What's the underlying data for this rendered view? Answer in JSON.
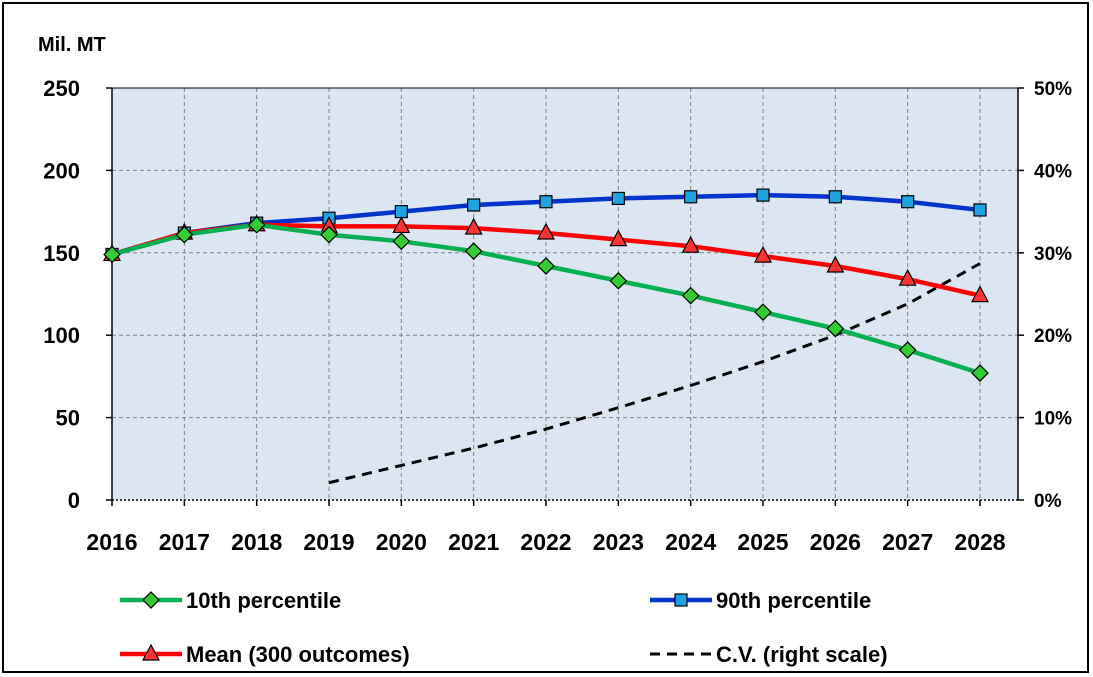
{
  "chart_data": {
    "type": "line",
    "title": "",
    "ylabel": "Mil. MT",
    "ylim": [
      0,
      250
    ],
    "yticks": [
      "0",
      "50",
      "100",
      "150",
      "200",
      "250"
    ],
    "y2lim": [
      0,
      0.5
    ],
    "y2ticks": [
      "0%",
      "10%",
      "20%",
      "30%",
      "40%",
      "50%"
    ],
    "categories": [
      "2016",
      "2017",
      "2018",
      "2019",
      "2020",
      "2021",
      "2022",
      "2023",
      "2024",
      "2025",
      "2026",
      "2027",
      "2028"
    ],
    "grid": true,
    "legend_position": "bottom",
    "colors": {
      "plot_bg": "#dce6f2",
      "p10": "#00b050",
      "p90": "#0033cc",
      "mean": "#ff0000",
      "cv": "#000000"
    },
    "series": [
      {
        "name": "10th percentile",
        "key": "p10",
        "axis": "left",
        "marker": "diamond",
        "marker_fill": "#33cc33",
        "values": [
          149,
          161,
          167,
          161,
          157,
          151,
          142,
          133,
          124,
          114,
          104,
          91,
          77
        ]
      },
      {
        "name": "90th percentile",
        "key": "p90",
        "axis": "left",
        "marker": "square",
        "marker_fill": "#1fa3e0",
        "values": [
          149,
          162,
          168,
          171,
          175,
          179,
          181,
          183,
          184,
          185,
          184,
          181,
          176
        ]
      },
      {
        "name": "Mean (300 outcomes)",
        "key": "mean",
        "axis": "left",
        "marker": "triangle",
        "marker_fill": "#ff3333",
        "values": [
          149,
          162,
          167,
          166,
          166,
          165,
          162,
          158,
          154,
          148,
          142,
          134,
          124
        ]
      },
      {
        "name": "C.V.  (right scale)",
        "key": "cv",
        "axis": "right",
        "marker": "none",
        "dashed": true,
        "values": [
          null,
          null,
          null,
          0.021,
          0.042,
          0.063,
          0.086,
          0.112,
          0.139,
          0.168,
          0.2,
          0.238,
          0.287
        ]
      }
    ]
  }
}
